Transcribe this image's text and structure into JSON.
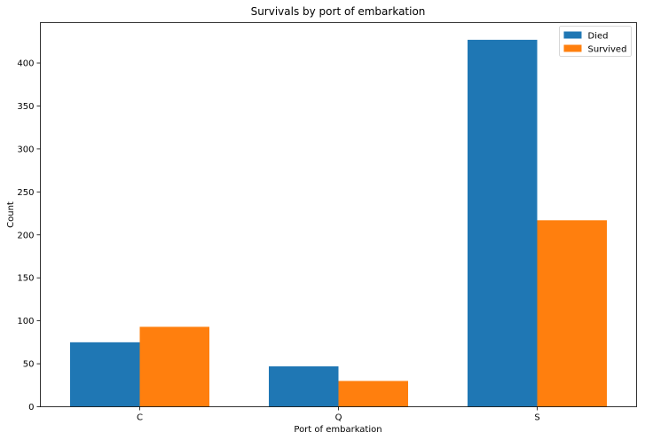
{
  "chart_data": {
    "type": "bar",
    "title": "Survivals by port of embarkation",
    "xlabel": "Port of embarkation",
    "ylabel": "Count",
    "categories": [
      "C",
      "Q",
      "S"
    ],
    "series": [
      {
        "name": "Died",
        "values": [
          75,
          47,
          427
        ],
        "color": "#1f77b4"
      },
      {
        "name": "Survived",
        "values": [
          93,
          30,
          217
        ],
        "color": "#ff7f0e"
      }
    ],
    "ylim": [
      0,
      447
    ],
    "yticks": [
      0,
      50,
      100,
      150,
      200,
      250,
      300,
      350,
      400
    ],
    "grid": false,
    "legend_position": "top-right"
  }
}
